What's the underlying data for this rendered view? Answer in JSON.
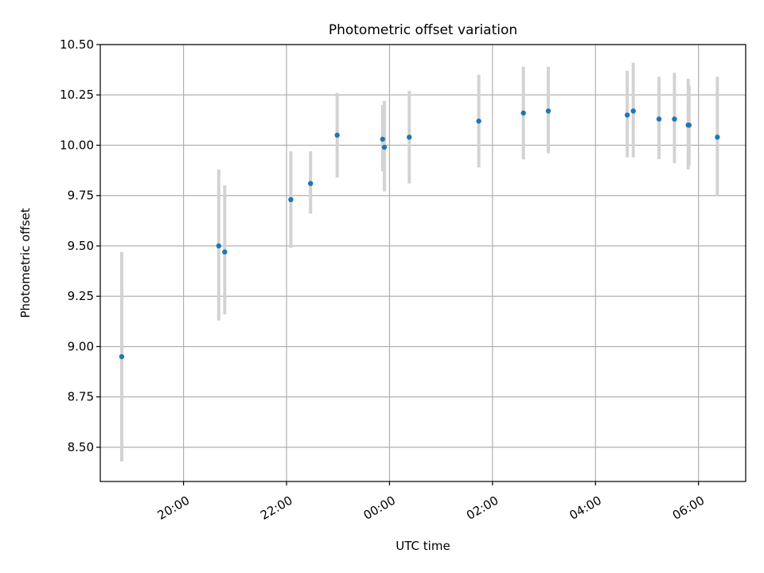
{
  "chart_data": {
    "type": "scatter",
    "title": "Photometric offset variation",
    "xlabel": "UTC time",
    "ylabel": "Photometric offset",
    "x_format": "HH:MM",
    "x_ticks": [
      "20:00",
      "22:00",
      "00:00",
      "02:00",
      "04:00",
      "06:00"
    ],
    "y_ticks": [
      "8.50",
      "8.75",
      "9.00",
      "9.25",
      "9.50",
      "9.75",
      "10.00",
      "10.25",
      "10.50"
    ],
    "xlim": [
      "18:23",
      "06:55"
    ],
    "ylim": [
      8.33,
      10.5
    ],
    "grid": true,
    "marker_color": "#1f77b4",
    "errorbar_color": "#d3d3d3",
    "points": [
      {
        "x": "18:48",
        "y": 8.95,
        "ylow": 8.43,
        "yhigh": 9.47
      },
      {
        "x": "20:41",
        "y": 9.5,
        "ylow": 9.13,
        "yhigh": 9.88
      },
      {
        "x": "20:48",
        "y": 9.47,
        "ylow": 9.16,
        "yhigh": 9.8
      },
      {
        "x": "22:05",
        "y": 9.73,
        "ylow": 9.49,
        "yhigh": 9.97
      },
      {
        "x": "22:28",
        "y": 9.81,
        "ylow": 9.66,
        "yhigh": 9.97
      },
      {
        "x": "22:59",
        "y": 10.05,
        "ylow": 9.84,
        "yhigh": 10.26
      },
      {
        "x": "23:52",
        "y": 10.03,
        "ylow": 9.87,
        "yhigh": 10.2
      },
      {
        "x": "23:54",
        "y": 9.99,
        "ylow": 9.77,
        "yhigh": 10.22
      },
      {
        "x": "00:23",
        "y": 10.04,
        "ylow": 9.81,
        "yhigh": 10.27
      },
      {
        "x": "01:44",
        "y": 10.12,
        "ylow": 9.89,
        "yhigh": 10.35
      },
      {
        "x": "02:36",
        "y": 10.16,
        "ylow": 9.93,
        "yhigh": 10.39
      },
      {
        "x": "03:05",
        "y": 10.17,
        "ylow": 9.96,
        "yhigh": 10.39
      },
      {
        "x": "04:37",
        "y": 10.15,
        "ylow": 9.94,
        "yhigh": 10.37
      },
      {
        "x": "04:44",
        "y": 10.17,
        "ylow": 9.94,
        "yhigh": 10.41
      },
      {
        "x": "05:14",
        "y": 10.13,
        "ylow": 9.93,
        "yhigh": 10.34
      },
      {
        "x": "05:32",
        "y": 10.13,
        "ylow": 9.91,
        "yhigh": 10.36
      },
      {
        "x": "05:48",
        "y": 10.1,
        "ylow": 9.88,
        "yhigh": 10.33
      },
      {
        "x": "05:49",
        "y": 10.1,
        "ylow": 9.9,
        "yhigh": 10.3
      },
      {
        "x": "06:22",
        "y": 10.04,
        "ylow": 9.75,
        "yhigh": 10.34
      }
    ]
  }
}
